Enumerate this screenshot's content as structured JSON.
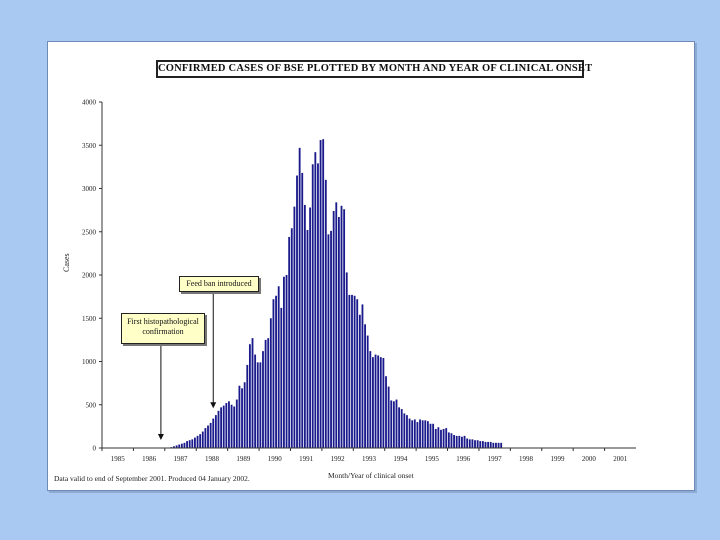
{
  "chart_data": {
    "type": "bar",
    "title": "CONFIRMED CASES OF BSE PLOTTED BY MONTH AND YEAR OF CLINICAL ONSET",
    "xlabel": "Month/Year of clinical onset",
    "ylabel": "Cases",
    "ylim": [
      0,
      4000
    ],
    "y_ticks": [
      0,
      500,
      1000,
      1500,
      2000,
      2500,
      3000,
      3500,
      4000
    ],
    "x_ticks": [
      "1985",
      "1986",
      "1987",
      "1988",
      "1989",
      "1990",
      "1991",
      "1992",
      "1993",
      "1994",
      "1995",
      "1996",
      "1997",
      "1998",
      "1999",
      "2000",
      "2001"
    ],
    "bar_color": "#1a1a8c",
    "series": [
      {
        "values": [
          0,
          0,
          0,
          0,
          0,
          0,
          0,
          0,
          0,
          0,
          0,
          0,
          0,
          0,
          0,
          0,
          0,
          0,
          0,
          0,
          0,
          0,
          0,
          0,
          0,
          0,
          10,
          20,
          30,
          40,
          50,
          60,
          80,
          90,
          100,
          120,
          140,
          160,
          190,
          230,
          260,
          290,
          340,
          380,
          430,
          470,
          490,
          520,
          540,
          500,
          480,
          560,
          720,
          690,
          760,
          960,
          1200,
          1270,
          1080,
          990,
          990,
          1120,
          1250,
          1270,
          1500,
          1720,
          1760,
          1870,
          1620,
          1980,
          2000,
          2440,
          2540,
          2790,
          3150,
          3470,
          3180,
          2810,
          2520,
          2780,
          3280,
          3420,
          3290,
          3560,
          3570,
          3100,
          2470,
          2510,
          2740,
          2840,
          2670,
          2800,
          2760,
          2030,
          1770,
          1770,
          1760,
          1720,
          1540,
          1660,
          1430,
          1300,
          1120,
          1050,
          1080,
          1070,
          1050,
          1040,
          830,
          710,
          550,
          540,
          560,
          470,
          450,
          400,
          380,
          340,
          320,
          330,
          300,
          330,
          320,
          320,
          310,
          280,
          280,
          220,
          240,
          210,
          220,
          230,
          180,
          170,
          150,
          140,
          140,
          130,
          140,
          110,
          100,
          100,
          90,
          90,
          80,
          80,
          70,
          70,
          70,
          60,
          60,
          60,
          60
        ]
      }
    ],
    "annotations": [
      {
        "text": "First histopathological confirmation"
      },
      {
        "text": "Feed ban introduced"
      }
    ],
    "footnote": "Data valid to end of September 2001. Produced 04 January 2002."
  }
}
